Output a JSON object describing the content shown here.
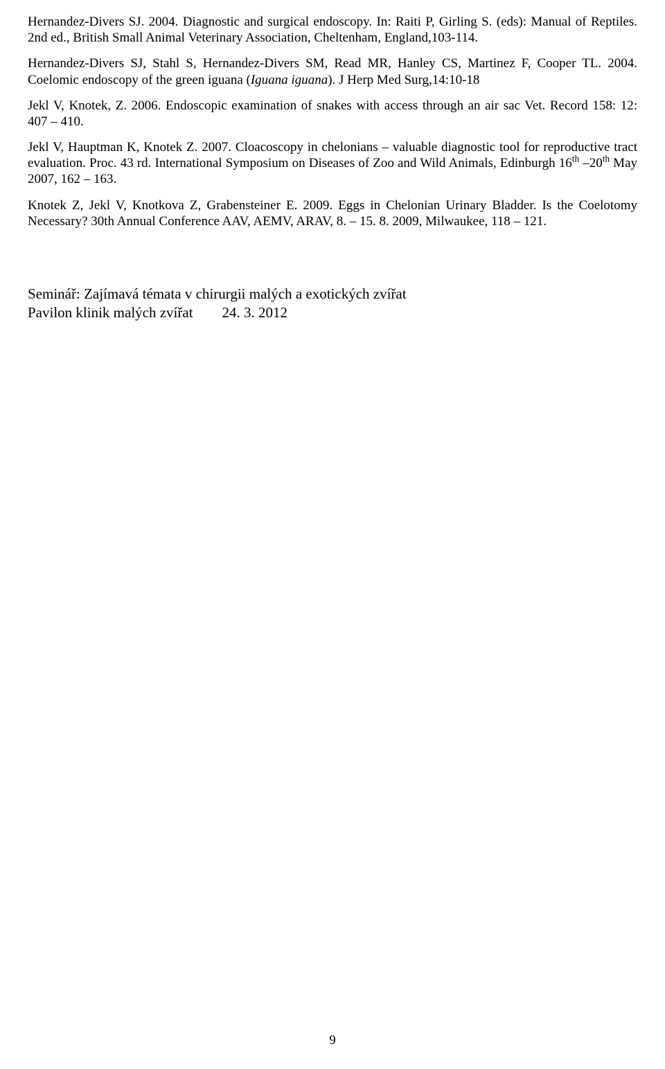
{
  "refs": [
    {
      "html": "Hernandez-Divers SJ. 2004. Diagnostic and surgical endoscopy. In: Raiti P, Girling S. (eds): Manual of Reptiles. 2nd ed., British Small Animal Veterinary Association, Cheltenham, England,103-114."
    },
    {
      "html": "Hernandez-Divers SJ, Stahl S, Hernandez-Divers SM, Read MR, Hanley CS, Martinez F, Cooper TL. 2004. Coelomic endoscopy of the green iguana (<span class=\"italic\">Iguana iguana</span>). J Herp Med Surg,14:10-18"
    },
    {
      "html": "Jekl V, Knotek, Z. 2006. Endoscopic examination of snakes with access through an air sac Vet. Record 158: 12: 407 – 410."
    },
    {
      "html": "Jekl V, Hauptman K, Knotek Z. 2007. Cloacoscopy in chelonians – valuable diagnostic tool for reproductive tract evaluation. Proc. 43 rd. International Symposium on Diseases of Zoo and Wild Animals, Edinburgh 16<sup>th</sup> –20<sup>th</sup> May 2007, 162 – 163."
    },
    {
      "html": "Knotek Z, Jekl V, Knotkova Z, Grabensteiner E. 2009. Eggs in Chelonian Urinary Bladder. Is the Coelotomy Necessary? 30th Annual Conference AAV, AEMV, ARAV, 8. – 15. 8. 2009, Milwaukee, 118 – 121."
    }
  ],
  "section": {
    "title": "Seminář: Zajímavá témata v chirurgii malých a exotických zvířat",
    "subtitle_left": "Pavilon klinik malých zvířat",
    "subtitle_right": "24. 3. 2012"
  },
  "page_number": "9"
}
